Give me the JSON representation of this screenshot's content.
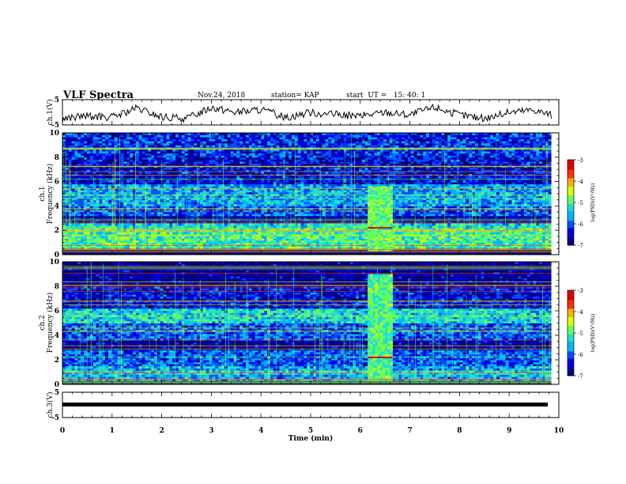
{
  "header": {
    "title": "VLF Spectra",
    "date": "Nov.24, 2018",
    "station": "station= KAP",
    "start": "start  UT =   15: 40: 1"
  },
  "colors": {
    "colormap": [
      "#00007a",
      "#0000e0",
      "#0050ff",
      "#00b4ff",
      "#20e0d0",
      "#60ff60",
      "#d8ff00",
      "#ffb000",
      "#ff3000",
      "#e00000",
      "#ffffff"
    ],
    "trace": "#000000"
  },
  "chart_data": [
    {
      "type": "line",
      "ylabel": "ch.1(V)",
      "ylim": [
        -5,
        5
      ],
      "yticks": [
        "5",
        "-5"
      ],
      "xlim": [
        0,
        9.85
      ],
      "description_of_series": "noisy waveform fluctuating around about -1 V",
      "x": [
        0,
        0.5,
        1,
        1.5,
        2,
        2.5,
        3,
        3.5,
        4,
        4.5,
        5,
        5.5,
        6,
        6.5,
        7,
        7.5,
        8,
        8.5,
        9,
        9.5,
        9.85
      ],
      "y": [
        -2.5,
        -1.5,
        -2,
        1.5,
        -2,
        -2.5,
        2,
        0,
        1,
        -2,
        0,
        -1,
        -1.5,
        0,
        -1,
        2,
        -1,
        -2.5,
        0,
        1,
        -1
      ]
    },
    {
      "type": "heatmap",
      "ylabel": "ch.1\nFrequency (kHz)",
      "ylim": [
        0,
        10
      ],
      "yticks": [
        "0",
        "2",
        "4",
        "6",
        "8",
        "10"
      ],
      "colorbar_label": "log(PSD)(V²/Hz)",
      "colorbar_range": [
        -7,
        -3
      ],
      "colorbar_ticks": [
        "-3",
        "-4",
        "-5",
        "-6",
        "-7"
      ],
      "bands": [
        [
          0.5,
          2.2,
          -5.0
        ],
        [
          2.2,
          2.6,
          -5.3
        ],
        [
          2.6,
          3.2,
          -6.7
        ],
        [
          3.2,
          4.0,
          -6.0
        ],
        [
          4.0,
          5.8,
          -5.6
        ],
        [
          5.8,
          8.0,
          -6.4
        ],
        [
          8.0,
          10.0,
          -6.2
        ]
      ],
      "event": {
        "t0": 6.15,
        "t1": 6.65,
        "f0": 0.3,
        "f1": 5.6,
        "level": -4.8
      }
    },
    {
      "type": "heatmap",
      "ylabel": "ch.2\nFrequency (kHz)",
      "ylim": [
        0,
        10
      ],
      "yticks": [
        "0",
        "2",
        "4",
        "6",
        "8",
        "10"
      ],
      "colorbar_label": "log(PSD)(V²/Hz)",
      "colorbar_range": [
        -7,
        -3
      ],
      "colorbar_ticks": [
        "-3",
        "-4",
        "-5",
        "-6",
        "-7"
      ],
      "bands": [
        [
          0.3,
          1.5,
          -5.6
        ],
        [
          1.5,
          2.8,
          -6.0
        ],
        [
          2.8,
          3.6,
          -6.7
        ],
        [
          3.6,
          5.0,
          -6.0
        ],
        [
          5.0,
          6.2,
          -5.3
        ],
        [
          6.2,
          8.0,
          -6.4
        ],
        [
          8.0,
          10.0,
          -6.8
        ]
      ],
      "event": {
        "t0": 6.15,
        "t1": 6.65,
        "f0": 0.3,
        "f1": 9.0,
        "level": -4.9
      }
    },
    {
      "type": "line",
      "ylabel": "ch.3(V)",
      "ylim": [
        -5,
        5
      ],
      "yticks": [
        "5",
        "-5"
      ],
      "xlim": [
        0,
        9.85
      ],
      "x": [
        0,
        9.85
      ],
      "y": [
        0,
        0
      ]
    }
  ],
  "xaxis": {
    "label": "Time (min)",
    "range": [
      0,
      10
    ],
    "ticks": [
      "0",
      "1",
      "2",
      "3",
      "4",
      "5",
      "6",
      "7",
      "8",
      "9",
      "10"
    ]
  }
}
